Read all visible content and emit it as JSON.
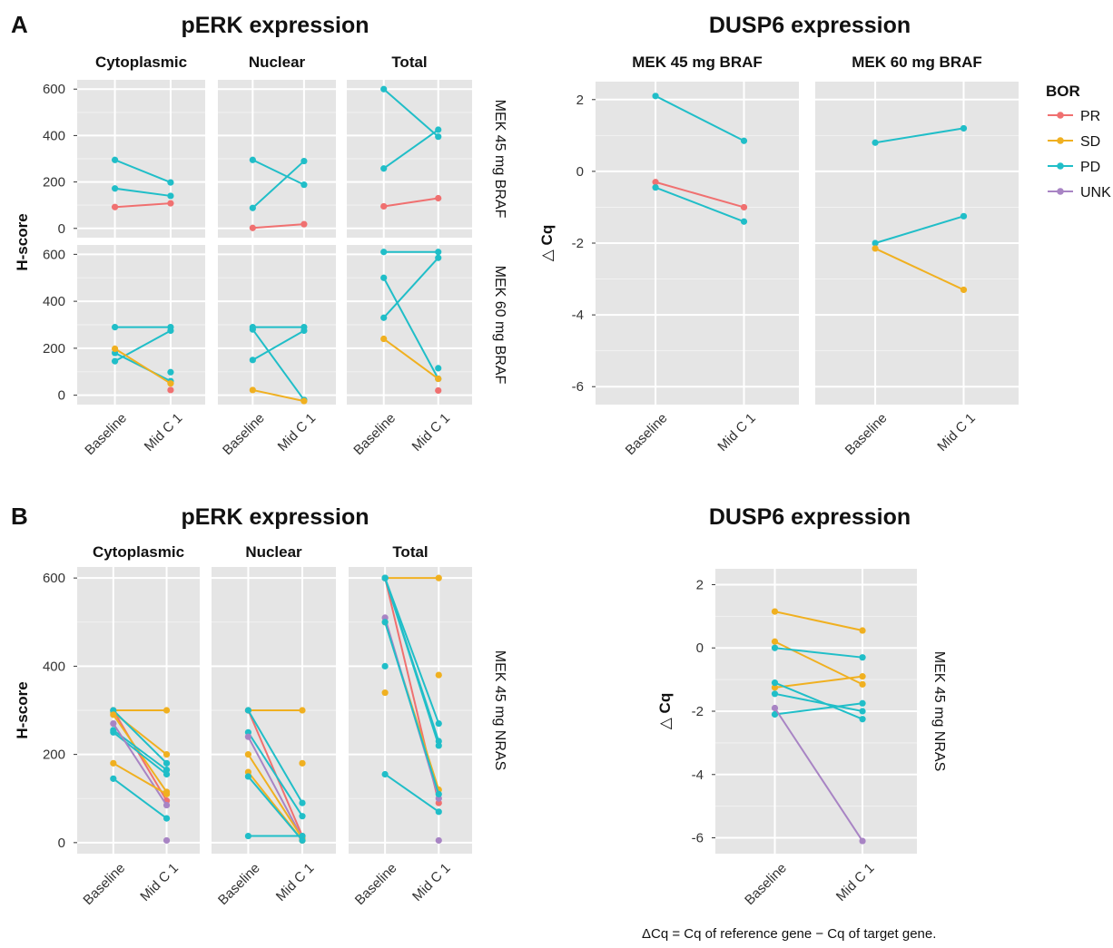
{
  "panel_labels": [
    "A",
    "B"
  ],
  "legend": {
    "title": "BOR",
    "items": [
      {
        "label": "PR",
        "color": "#F07070"
      },
      {
        "label": "SD",
        "color": "#F0B020"
      },
      {
        "label": "PD",
        "color": "#20BEC8"
      },
      {
        "label": "UNK",
        "color": "#A884C4"
      }
    ]
  },
  "footnote": "ΔCq = Cq of reference gene − Cq of target gene.",
  "chart_data": [
    {
      "id": "A-pERK",
      "type": "line",
      "title": "pERK expression",
      "ylabel": "H-score",
      "ylim": [
        -40,
        640
      ],
      "yticks": [
        0,
        200,
        400,
        600
      ],
      "x": [
        "Baseline",
        "Mid C 1"
      ],
      "columns": [
        "Cytoplasmic",
        "Nuclear",
        "Total"
      ],
      "rows": [
        "MEK 45 mg BRAF",
        "MEK 60 mg BRAF"
      ],
      "series": [
        {
          "row": 0,
          "col": 0,
          "bor": "PD",
          "values": [
            295,
            198
          ]
        },
        {
          "row": 0,
          "col": 0,
          "bor": "PD",
          "values": [
            172,
            140
          ]
        },
        {
          "row": 0,
          "col": 0,
          "bor": "PR",
          "values": [
            92,
            108
          ]
        },
        {
          "row": 0,
          "col": 1,
          "bor": "PD",
          "values": [
            295,
            188
          ]
        },
        {
          "row": 0,
          "col": 1,
          "bor": "PD",
          "values": [
            88,
            290
          ]
        },
        {
          "row": 0,
          "col": 1,
          "bor": "PR",
          "values": [
            2,
            18
          ]
        },
        {
          "row": 0,
          "col": 2,
          "bor": "PD",
          "values": [
            600,
            395
          ]
        },
        {
          "row": 0,
          "col": 2,
          "bor": "PD",
          "values": [
            258,
            425
          ]
        },
        {
          "row": 0,
          "col": 2,
          "bor": "PR",
          "values": [
            95,
            130
          ]
        },
        {
          "row": 1,
          "col": 0,
          "bor": "PD",
          "values": [
            290,
            290
          ]
        },
        {
          "row": 1,
          "col": 0,
          "bor": "PD",
          "values": [
            145,
            275
          ]
        },
        {
          "row": 1,
          "col": 0,
          "bor": "PD",
          "values": [
            180,
            60
          ]
        },
        {
          "row": 1,
          "col": 0,
          "bor": "SD",
          "values": [
            198,
            50
          ]
        },
        {
          "row": 1,
          "col": 0,
          "bor": "PD",
          "values": [
            null,
            98
          ]
        },
        {
          "row": 1,
          "col": 0,
          "bor": "PR",
          "values": [
            null,
            22
          ]
        },
        {
          "row": 1,
          "col": 1,
          "bor": "PD",
          "values": [
            290,
            290
          ]
        },
        {
          "row": 1,
          "col": 1,
          "bor": "PD",
          "values": [
            280,
            -20
          ]
        },
        {
          "row": 1,
          "col": 1,
          "bor": "PD",
          "values": [
            150,
            275
          ]
        },
        {
          "row": 1,
          "col": 1,
          "bor": "SD",
          "values": [
            22,
            -25
          ]
        },
        {
          "row": 1,
          "col": 2,
          "bor": "PD",
          "values": [
            610,
            610
          ]
        },
        {
          "row": 1,
          "col": 2,
          "bor": "PD",
          "values": [
            500,
            70
          ]
        },
        {
          "row": 1,
          "col": 2,
          "bor": "PD",
          "values": [
            330,
            585
          ]
        },
        {
          "row": 1,
          "col": 2,
          "bor": "SD",
          "values": [
            240,
            70
          ]
        },
        {
          "row": 1,
          "col": 2,
          "bor": "PD",
          "values": [
            null,
            115
          ]
        },
        {
          "row": 1,
          "col": 2,
          "bor": "PR",
          "values": [
            null,
            20
          ]
        }
      ]
    },
    {
      "id": "A-DUSP6",
      "type": "line",
      "title": "DUSP6 expression",
      "ylabel": "△ Cq",
      "ylim": [
        -6.5,
        2.5
      ],
      "yticks": [
        2,
        0,
        -2,
        -4,
        -6
      ],
      "x": [
        "Baseline",
        "Mid C 1"
      ],
      "columns": [
        "MEK 45 mg BRAF",
        "MEK 60 mg BRAF"
      ],
      "series": [
        {
          "col": 0,
          "bor": "PD",
          "values": [
            2.1,
            0.85
          ]
        },
        {
          "col": 0,
          "bor": "PR",
          "values": [
            -0.3,
            -1.0
          ]
        },
        {
          "col": 0,
          "bor": "PD",
          "values": [
            -0.45,
            -1.4
          ]
        },
        {
          "col": 1,
          "bor": "PD",
          "values": [
            0.8,
            1.2
          ]
        },
        {
          "col": 1,
          "bor": "PD",
          "values": [
            -2.0,
            -1.25
          ]
        },
        {
          "col": 1,
          "bor": "SD",
          "values": [
            -2.15,
            -3.3
          ]
        }
      ]
    },
    {
      "id": "B-pERK",
      "type": "line",
      "title": "pERK expression",
      "ylabel": "H-score",
      "ylim": [
        -25,
        625
      ],
      "yticks": [
        0,
        200,
        400,
        600
      ],
      "x": [
        "Baseline",
        "Mid C 1"
      ],
      "columns": [
        "Cytoplasmic",
        "Nuclear",
        "Total"
      ],
      "rows": [
        "MEK 45 mg NRAS"
      ],
      "series": [
        {
          "col": 0,
          "bor": "SD",
          "values": [
            300,
            300
          ]
        },
        {
          "col": 0,
          "bor": "PR",
          "values": [
            300,
            95
          ]
        },
        {
          "col": 0,
          "bor": "SD",
          "values": [
            295,
            200
          ]
        },
        {
          "col": 0,
          "bor": "PD",
          "values": [
            300,
            180
          ]
        },
        {
          "col": 0,
          "bor": "SD",
          "values": [
            290,
            115
          ]
        },
        {
          "col": 0,
          "bor": "PD",
          "values": [
            255,
            165
          ]
        },
        {
          "col": 0,
          "bor": "PD",
          "values": [
            250,
            155
          ]
        },
        {
          "col": 0,
          "bor": "UNK",
          "values": [
            270,
            85
          ]
        },
        {
          "col": 0,
          "bor": "SD",
          "values": [
            180,
            110
          ]
        },
        {
          "col": 0,
          "bor": "PD",
          "values": [
            145,
            55
          ]
        },
        {
          "col": 0,
          "bor": "UNK",
          "values": [
            null,
            5
          ]
        },
        {
          "col": 1,
          "bor": "SD",
          "values": [
            300,
            300
          ]
        },
        {
          "col": 1,
          "bor": "PR",
          "values": [
            300,
            15
          ]
        },
        {
          "col": 1,
          "bor": "PD",
          "values": [
            300,
            90
          ]
        },
        {
          "col": 1,
          "bor": "PD",
          "values": [
            250,
            60
          ]
        },
        {
          "col": 1,
          "bor": "UNK",
          "values": [
            240,
            10
          ]
        },
        {
          "col": 1,
          "bor": "SD",
          "values": [
            200,
            10
          ]
        },
        {
          "col": 1,
          "bor": "SD",
          "values": [
            160,
            5
          ]
        },
        {
          "col": 1,
          "bor": "PD",
          "values": [
            150,
            5
          ]
        },
        {
          "col": 1,
          "bor": "PD",
          "values": [
            15,
            15
          ]
        },
        {
          "col": 1,
          "bor": "SD",
          "values": [
            null,
            180
          ]
        },
        {
          "col": 2,
          "bor": "SD",
          "values": [
            600,
            600
          ]
        },
        {
          "col": 2,
          "bor": "PR",
          "values": [
            600,
            90
          ]
        },
        {
          "col": 2,
          "bor": "PD",
          "values": [
            600,
            270
          ]
        },
        {
          "col": 2,
          "bor": "PD",
          "values": [
            600,
            230
          ]
        },
        {
          "col": 2,
          "bor": "PD",
          "values": [
            600,
            220
          ]
        },
        {
          "col": 2,
          "bor": "SD",
          "values": [
            500,
            120
          ]
        },
        {
          "col": 2,
          "bor": "UNK",
          "values": [
            510,
            100
          ]
        },
        {
          "col": 2,
          "bor": "PD",
          "values": [
            500,
            110
          ]
        },
        {
          "col": 2,
          "bor": "PD",
          "values": [
            400,
            null
          ]
        },
        {
          "col": 2,
          "bor": "SD",
          "values": [
            340,
            null
          ]
        },
        {
          "col": 2,
          "bor": "PD",
          "values": [
            155,
            70
          ]
        },
        {
          "col": 2,
          "bor": "SD",
          "values": [
            null,
            380
          ]
        },
        {
          "col": 2,
          "bor": "UNK",
          "values": [
            null,
            5
          ]
        }
      ]
    },
    {
      "id": "B-DUSP6",
      "type": "line",
      "title": "DUSP6 expression",
      "ylabel": "△ Cq",
      "ylim": [
        -6.5,
        2.5
      ],
      "yticks": [
        2,
        0,
        -2,
        -4,
        -6
      ],
      "x": [
        "Baseline",
        "Mid C 1"
      ],
      "rows": [
        "MEK 45 mg NRAS"
      ],
      "series": [
        {
          "bor": "SD",
          "values": [
            1.15,
            0.55
          ]
        },
        {
          "bor": "SD",
          "values": [
            0.2,
            -1.15
          ]
        },
        {
          "bor": "PD",
          "values": [
            0.0,
            -0.3
          ]
        },
        {
          "bor": "SD",
          "values": [
            -1.25,
            -0.9
          ]
        },
        {
          "bor": "PD",
          "values": [
            -1.1,
            -2.25
          ]
        },
        {
          "bor": "PD",
          "values": [
            -1.45,
            -2.0
          ]
        },
        {
          "bor": "PD",
          "values": [
            -2.1,
            -1.75
          ]
        },
        {
          "bor": "UNK",
          "values": [
            -1.9,
            -6.1
          ]
        }
      ]
    }
  ]
}
